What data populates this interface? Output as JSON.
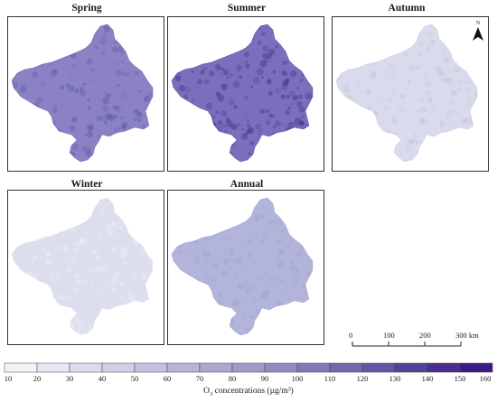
{
  "panels": [
    {
      "title": "Spring",
      "mean_o3": 100,
      "fill": "#8a82c4",
      "grain": "#5f56a8"
    },
    {
      "title": "Summer",
      "mean_o3": 110,
      "fill": "#7a6fbc",
      "grain": "#3e2f8f"
    },
    {
      "title": "Autumn",
      "mean_o3": 35,
      "fill": "#d9dbec",
      "grain": "#c3c4e0"
    },
    {
      "title": "Winter",
      "mean_o3": 30,
      "fill": "#dcdeee",
      "grain": "#eeeff7"
    },
    {
      "title": "Annual",
      "mean_o3": 70,
      "fill": "#b3b4d9",
      "grain": "#a1a2cf"
    }
  ],
  "north_arrow": {
    "label": "N",
    "icon": "north-arrow-icon"
  },
  "scale_bar": {
    "ticks": [
      "0",
      "100",
      "200",
      "300 km"
    ],
    "values_km": [
      0,
      100,
      200,
      300
    ]
  },
  "legend": {
    "title_prefix": "O",
    "title_sub": "3",
    "title_suffix": " concentrations (µg/m³)",
    "ticks": [
      "10",
      "20",
      "30",
      "40",
      "50",
      "60",
      "70",
      "80",
      "90",
      "100",
      "110",
      "120",
      "130",
      "140",
      "150",
      "160"
    ],
    "colors": [
      "#f2f2f8",
      "#e6e7f2",
      "#dadbec",
      "#cecfe6",
      "#c1c2df",
      "#b5b5d8",
      "#a9a8d1",
      "#9c9bc9",
      "#8f8cc1",
      "#8178b8",
      "#7266ae",
      "#6454a4",
      "#55419a",
      "#482f8f",
      "#3a1c85"
    ]
  }
}
